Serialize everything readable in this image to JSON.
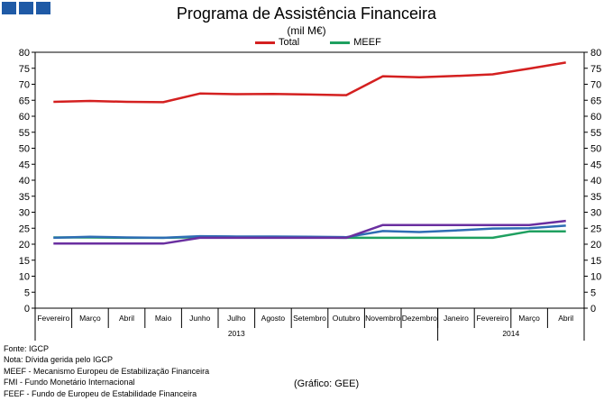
{
  "chart_data": {
    "type": "line",
    "title": "Programa de Assistência Financeira",
    "subtitle": "(mil M€)",
    "categories": [
      "Fevereiro",
      "Março",
      "Abril",
      "Maio",
      "Junho",
      "Julho",
      "Agosto",
      "Setembro",
      "Outubro",
      "Novembro",
      "Dezembro",
      "Janeiro",
      "Fevereiro",
      "Março",
      "Abril"
    ],
    "years": [
      {
        "label": "2013",
        "span": 11
      },
      {
        "label": "2014",
        "span": 4
      }
    ],
    "ylim": [
      0,
      80
    ],
    "yticks": [
      0,
      5,
      10,
      15,
      20,
      25,
      30,
      35,
      40,
      45,
      50,
      55,
      60,
      65,
      70,
      75,
      80
    ],
    "series": [
      {
        "name": "Total",
        "color": "#d42020",
        "legend": true,
        "values": [
          64.5,
          64.8,
          64.5,
          64.4,
          67.1,
          66.9,
          67.0,
          66.8,
          66.6,
          72.5,
          72.2,
          72.6,
          73.1,
          74.9,
          76.8
        ]
      },
      {
        "name": "MEEF",
        "color": "#1fa060",
        "legend": true,
        "values": [
          22.1,
          22.1,
          22.0,
          22.0,
          22.2,
          22.1,
          22.1,
          22.1,
          22.0,
          22.0,
          22.0,
          22.0,
          22.0,
          24.0,
          24.0
        ]
      },
      {
        "name": "FMI",
        "color": "#2e6db4",
        "legend": false,
        "values": [
          22.0,
          22.3,
          22.1,
          22.0,
          22.5,
          22.4,
          22.4,
          22.3,
          22.2,
          24.1,
          23.8,
          24.3,
          24.9,
          25.0,
          25.8
        ]
      },
      {
        "name": "FEEF",
        "color": "#6a2fa0",
        "legend": false,
        "values": [
          20.2,
          20.2,
          20.2,
          20.2,
          22.0,
          22.0,
          22.0,
          22.0,
          22.0,
          26.0,
          26.0,
          26.0,
          26.0,
          26.0,
          27.3
        ]
      }
    ]
  },
  "legend": {
    "total": "Total",
    "meef": "MEEF"
  },
  "notes": {
    "line1": "Fonte: IGCP",
    "line2": "Nota: Dívida gerida pelo IGCP",
    "line3": "MEEF - Mecanismo Europeu de Estabilização Financeira",
    "line4": "FMI - Fundo Monetário Internacional",
    "line5": "FEEF - Fundo de Europeu de Estabilidade Financeira"
  },
  "credit": "(Gráfico: GEE)",
  "colors": {
    "logo": "#1f5aa6",
    "total": "#d42020",
    "meef": "#1fa060"
  }
}
